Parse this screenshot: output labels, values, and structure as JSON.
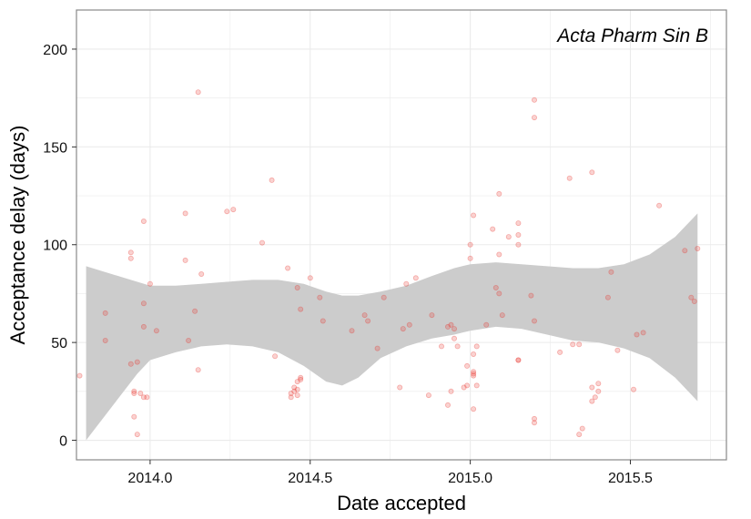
{
  "chart_data": {
    "type": "scatter",
    "title": "",
    "annotation": "Acta Pharm Sin B",
    "xlabel": "Date accepted",
    "ylabel": "Acceptance delay (days)",
    "xlim": [
      2013.77,
      2015.8
    ],
    "ylim": [
      -10,
      220
    ],
    "x_ticks": [
      2014.0,
      2014.5,
      2015.0,
      2015.5
    ],
    "x_tick_labels": [
      "2014.0",
      "2014.5",
      "2015.0",
      "2015.5"
    ],
    "y_ticks": [
      0,
      50,
      100,
      150,
      200
    ],
    "y_tick_labels": [
      "0",
      "50",
      "100",
      "150",
      "200"
    ],
    "grid": true,
    "colors": {
      "points": "#e8302a",
      "band": "#cccccc",
      "panel_border": "#888888",
      "grid": "#ebebeb"
    },
    "smooth_band": {
      "x": [
        2013.8,
        2013.88,
        2013.96,
        2014.0,
        2014.08,
        2014.16,
        2014.24,
        2014.32,
        2014.4,
        2014.48,
        2014.55,
        2014.6,
        2014.65,
        2014.72,
        2014.8,
        2014.88,
        2014.95,
        2015.0,
        2015.08,
        2015.16,
        2015.24,
        2015.32,
        2015.4,
        2015.48,
        2015.56,
        2015.64,
        2015.71
      ],
      "lower": [
        0,
        17,
        34,
        41,
        45,
        48,
        49,
        48,
        45,
        38,
        30,
        28,
        32,
        42,
        48,
        52,
        54,
        56,
        58,
        57,
        54,
        51,
        50,
        47,
        42,
        32,
        20
      ],
      "upper": [
        89,
        85,
        81,
        79,
        79,
        80,
        81,
        82,
        82,
        80,
        76,
        74,
        74,
        76,
        79,
        84,
        88,
        90,
        91,
        90,
        89,
        88,
        88,
        90,
        95,
        104,
        116
      ]
    },
    "points": [
      [
        2013.78,
        33
      ],
      [
        2013.86,
        65
      ],
      [
        2013.86,
        51
      ],
      [
        2013.94,
        96
      ],
      [
        2013.94,
        93
      ],
      [
        2013.94,
        39
      ],
      [
        2013.95,
        25
      ],
      [
        2013.95,
        24
      ],
      [
        2013.95,
        12
      ],
      [
        2013.96,
        40
      ],
      [
        2013.96,
        3
      ],
      [
        2013.97,
        24
      ],
      [
        2013.98,
        112
      ],
      [
        2013.98,
        70
      ],
      [
        2013.98,
        58
      ],
      [
        2013.98,
        22
      ],
      [
        2013.99,
        22
      ],
      [
        2014.0,
        80
      ],
      [
        2014.02,
        56
      ],
      [
        2014.11,
        116
      ],
      [
        2014.11,
        92
      ],
      [
        2014.12,
        51
      ],
      [
        2014.14,
        66
      ],
      [
        2014.15,
        178
      ],
      [
        2014.15,
        36
      ],
      [
        2014.16,
        85
      ],
      [
        2014.24,
        117
      ],
      [
        2014.26,
        118
      ],
      [
        2014.35,
        101
      ],
      [
        2014.38,
        133
      ],
      [
        2014.39,
        43
      ],
      [
        2014.43,
        88
      ],
      [
        2014.44,
        24
      ],
      [
        2014.44,
        22
      ],
      [
        2014.45,
        27
      ],
      [
        2014.45,
        25
      ],
      [
        2014.46,
        26
      ],
      [
        2014.46,
        23
      ],
      [
        2014.46,
        30
      ],
      [
        2014.47,
        31
      ],
      [
        2014.47,
        32
      ],
      [
        2014.46,
        78
      ],
      [
        2014.47,
        67
      ],
      [
        2014.5,
        83
      ],
      [
        2014.53,
        73
      ],
      [
        2014.54,
        61
      ],
      [
        2014.63,
        56
      ],
      [
        2014.67,
        64
      ],
      [
        2014.68,
        61
      ],
      [
        2014.71,
        47
      ],
      [
        2014.73,
        73
      ],
      [
        2014.78,
        27
      ],
      [
        2014.79,
        57
      ],
      [
        2014.8,
        80
      ],
      [
        2014.81,
        59
      ],
      [
        2014.83,
        83
      ],
      [
        2014.87,
        23
      ],
      [
        2014.88,
        64
      ],
      [
        2014.91,
        48
      ],
      [
        2014.93,
        58
      ],
      [
        2014.93,
        18
      ],
      [
        2014.94,
        59
      ],
      [
        2014.94,
        25
      ],
      [
        2014.95,
        57
      ],
      [
        2014.95,
        52
      ],
      [
        2014.96,
        48
      ],
      [
        2014.98,
        27
      ],
      [
        2014.99,
        28
      ],
      [
        2014.99,
        38
      ],
      [
        2015.0,
        100
      ],
      [
        2015.0,
        93
      ],
      [
        2015.01,
        115
      ],
      [
        2015.01,
        44
      ],
      [
        2015.01,
        35
      ],
      [
        2015.01,
        34
      ],
      [
        2015.01,
        33
      ],
      [
        2015.02,
        48
      ],
      [
        2015.02,
        28
      ],
      [
        2015.01,
        16
      ],
      [
        2015.05,
        59
      ],
      [
        2015.07,
        108
      ],
      [
        2015.08,
        78
      ],
      [
        2015.09,
        126
      ],
      [
        2015.09,
        95
      ],
      [
        2015.09,
        75
      ],
      [
        2015.1,
        64
      ],
      [
        2015.12,
        104
      ],
      [
        2015.15,
        111
      ],
      [
        2015.15,
        105
      ],
      [
        2015.15,
        100
      ],
      [
        2015.15,
        41
      ],
      [
        2015.15,
        41
      ],
      [
        2015.19,
        74
      ],
      [
        2015.2,
        174
      ],
      [
        2015.2,
        165
      ],
      [
        2015.2,
        61
      ],
      [
        2015.2,
        9
      ],
      [
        2015.2,
        11
      ],
      [
        2015.28,
        45
      ],
      [
        2015.31,
        134
      ],
      [
        2015.32,
        49
      ],
      [
        2015.34,
        49
      ],
      [
        2015.34,
        3
      ],
      [
        2015.35,
        6
      ],
      [
        2015.38,
        137
      ],
      [
        2015.38,
        27
      ],
      [
        2015.38,
        20
      ],
      [
        2015.39,
        22
      ],
      [
        2015.4,
        25
      ],
      [
        2015.4,
        29
      ],
      [
        2015.43,
        73
      ],
      [
        2015.44,
        86
      ],
      [
        2015.46,
        46
      ],
      [
        2015.51,
        26
      ],
      [
        2015.52,
        54
      ],
      [
        2015.54,
        55
      ],
      [
        2015.59,
        120
      ],
      [
        2015.67,
        97
      ],
      [
        2015.69,
        73
      ],
      [
        2015.7,
        71
      ],
      [
        2015.71,
        98
      ]
    ]
  }
}
